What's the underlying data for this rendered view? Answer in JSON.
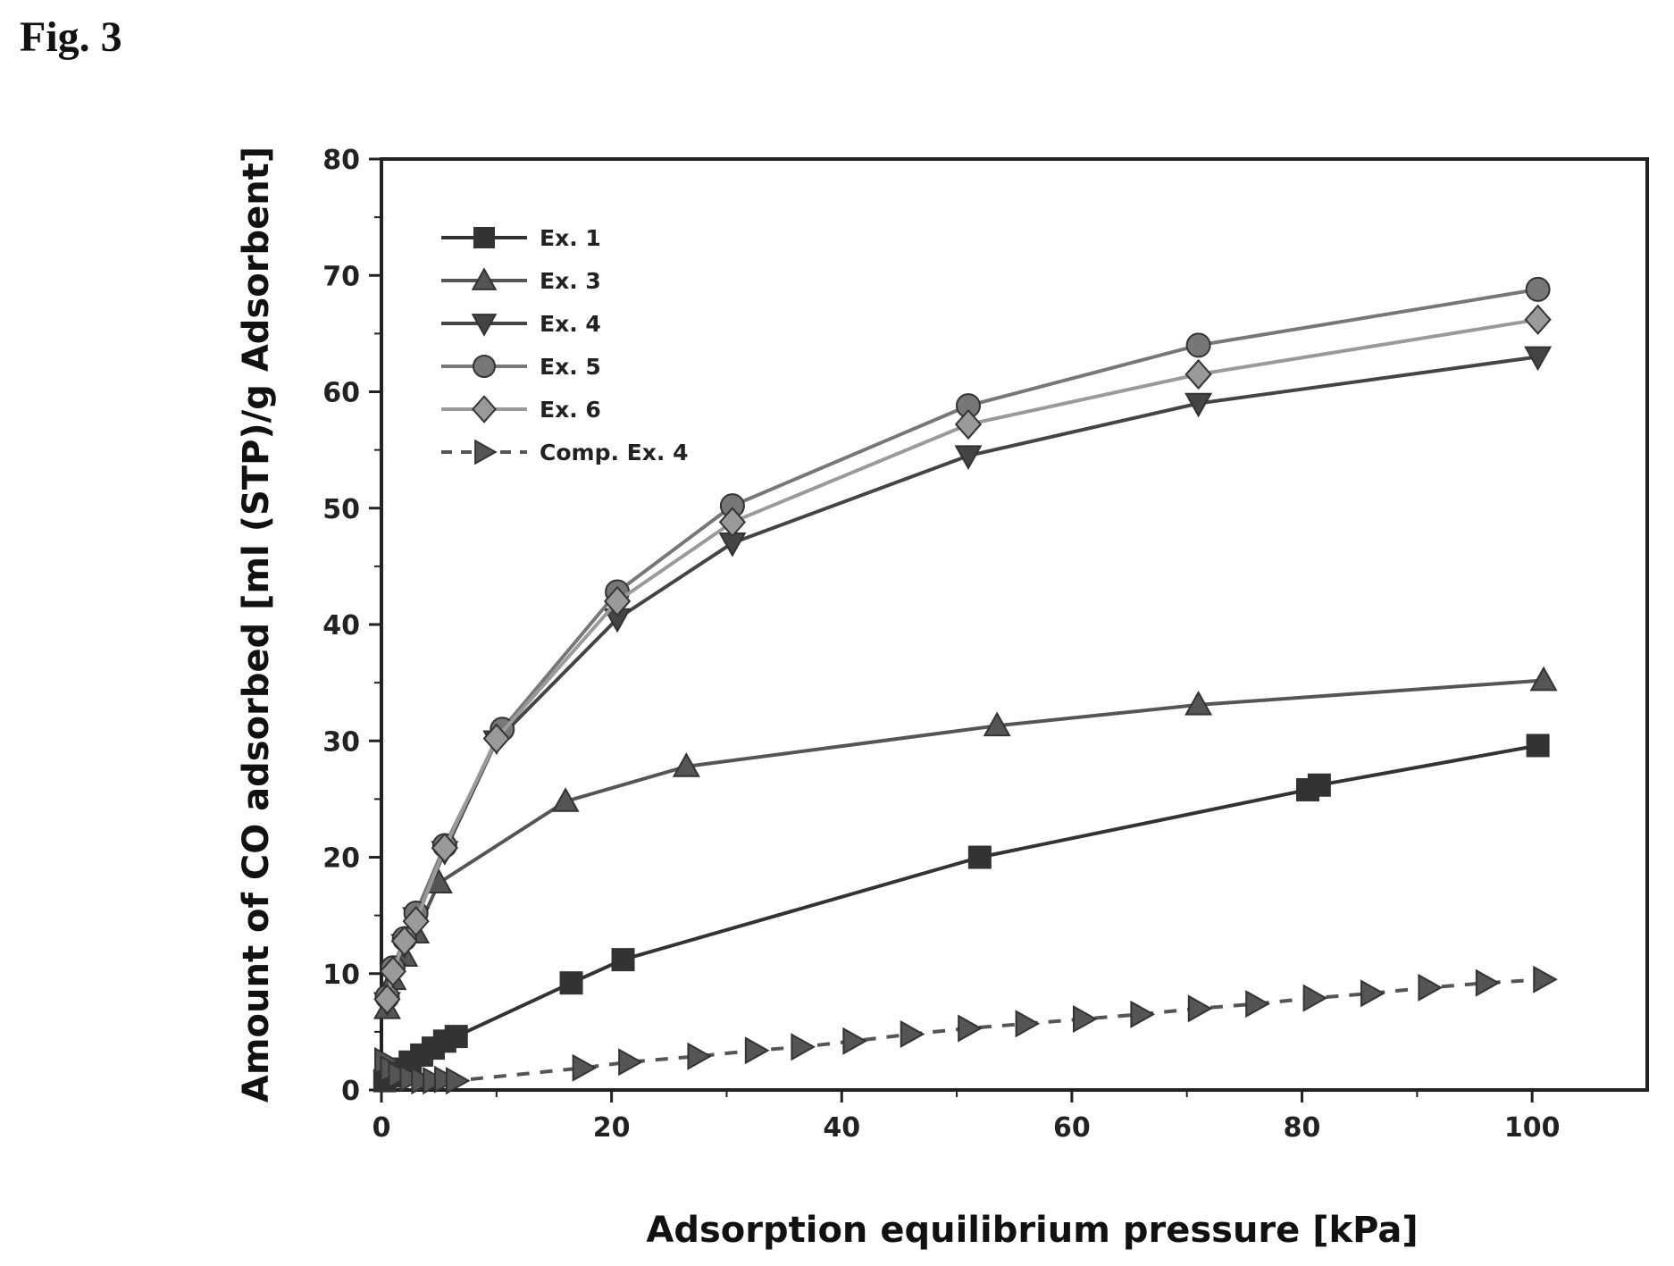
{
  "figure_label": "Fig. 3",
  "chart_data": {
    "type": "line",
    "title": "",
    "xlabel": "Adsorption equilibrium pressure [kPa]",
    "ylabel": "Amount of CO adsorbed [ml (STP)/g Adsorbent]",
    "xlim": [
      0,
      110
    ],
    "ylim": [
      0,
      80
    ],
    "x_ticks": [
      0,
      20,
      40,
      60,
      80,
      100
    ],
    "y_ticks": [
      0,
      10,
      20,
      30,
      40,
      50,
      60,
      70,
      80
    ],
    "grid": false,
    "legend_position": "top-left",
    "series": [
      {
        "name": "Ex. 1",
        "marker": "square",
        "line": "solid",
        "color": "#333333",
        "x": [
          0.3,
          0.8,
          1.5,
          2.5,
          3.5,
          4.5,
          5.5,
          6.5,
          16.5,
          21,
          52,
          80.5,
          81.5,
          100.5
        ],
        "y": [
          0.8,
          1.2,
          1.8,
          2.4,
          3.0,
          3.6,
          4.2,
          4.6,
          9.2,
          11.2,
          20.0,
          25.8,
          26.2,
          29.6
        ]
      },
      {
        "name": "Ex. 3",
        "marker": "triangle-up",
        "line": "solid",
        "color": "#555555",
        "x": [
          0.5,
          1.0,
          2.0,
          3.0,
          5.0,
          16.0,
          26.5,
          53.5,
          71.0,
          101.0
        ],
        "y": [
          7.0,
          9.5,
          11.5,
          13.5,
          17.8,
          24.8,
          27.8,
          31.3,
          33.1,
          35.2
        ]
      },
      {
        "name": "Ex. 4",
        "marker": "triangle-down",
        "line": "solid",
        "color": "#444444",
        "x": [
          0.5,
          1.0,
          2.0,
          3.0,
          5.5,
          10.0,
          20.5,
          30.5,
          51.0,
          71.0,
          100.5
        ],
        "y": [
          7.5,
          10.0,
          12.5,
          14.8,
          20.5,
          30.0,
          40.5,
          47.0,
          54.5,
          59.0,
          63.0
        ]
      },
      {
        "name": "Ex. 5",
        "marker": "circle",
        "line": "solid",
        "color": "#777777",
        "x": [
          0.5,
          1.0,
          2.0,
          3.0,
          5.5,
          10.5,
          20.5,
          30.5,
          51.0,
          71.0,
          100.5
        ],
        "y": [
          8.0,
          10.5,
          13.0,
          15.2,
          21.0,
          31.0,
          42.8,
          50.2,
          58.8,
          64.0,
          68.8
        ]
      },
      {
        "name": "Ex. 6",
        "marker": "diamond",
        "line": "solid",
        "color": "#9a9a9a",
        "x": [
          0.5,
          1.0,
          2.0,
          3.0,
          5.5,
          10.0,
          20.5,
          30.5,
          51.0,
          71.0,
          100.5
        ],
        "y": [
          7.8,
          10.2,
          12.8,
          14.5,
          20.8,
          30.2,
          42.0,
          48.8,
          57.2,
          61.5,
          66.2
        ]
      },
      {
        "name": "Comp. Ex. 4",
        "marker": "triangle-right",
        "line": "dashed",
        "color": "#555555",
        "x": [
          0.3,
          0.8,
          1.5,
          2.5,
          3.5,
          4.5,
          5.5,
          6.5,
          17.5,
          21.5,
          27.5,
          32.5,
          36.5,
          41,
          46,
          51,
          56,
          61,
          66,
          71,
          76,
          81,
          86,
          91,
          96,
          101
        ],
        "y": [
          2.5,
          1.8,
          1.3,
          1.0,
          0.8,
          0.8,
          0.9,
          0.8,
          1.9,
          2.4,
          2.9,
          3.4,
          3.7,
          4.2,
          4.8,
          5.3,
          5.7,
          6.1,
          6.5,
          7.0,
          7.4,
          7.9,
          8.3,
          8.8,
          9.2,
          9.5
        ]
      }
    ]
  }
}
